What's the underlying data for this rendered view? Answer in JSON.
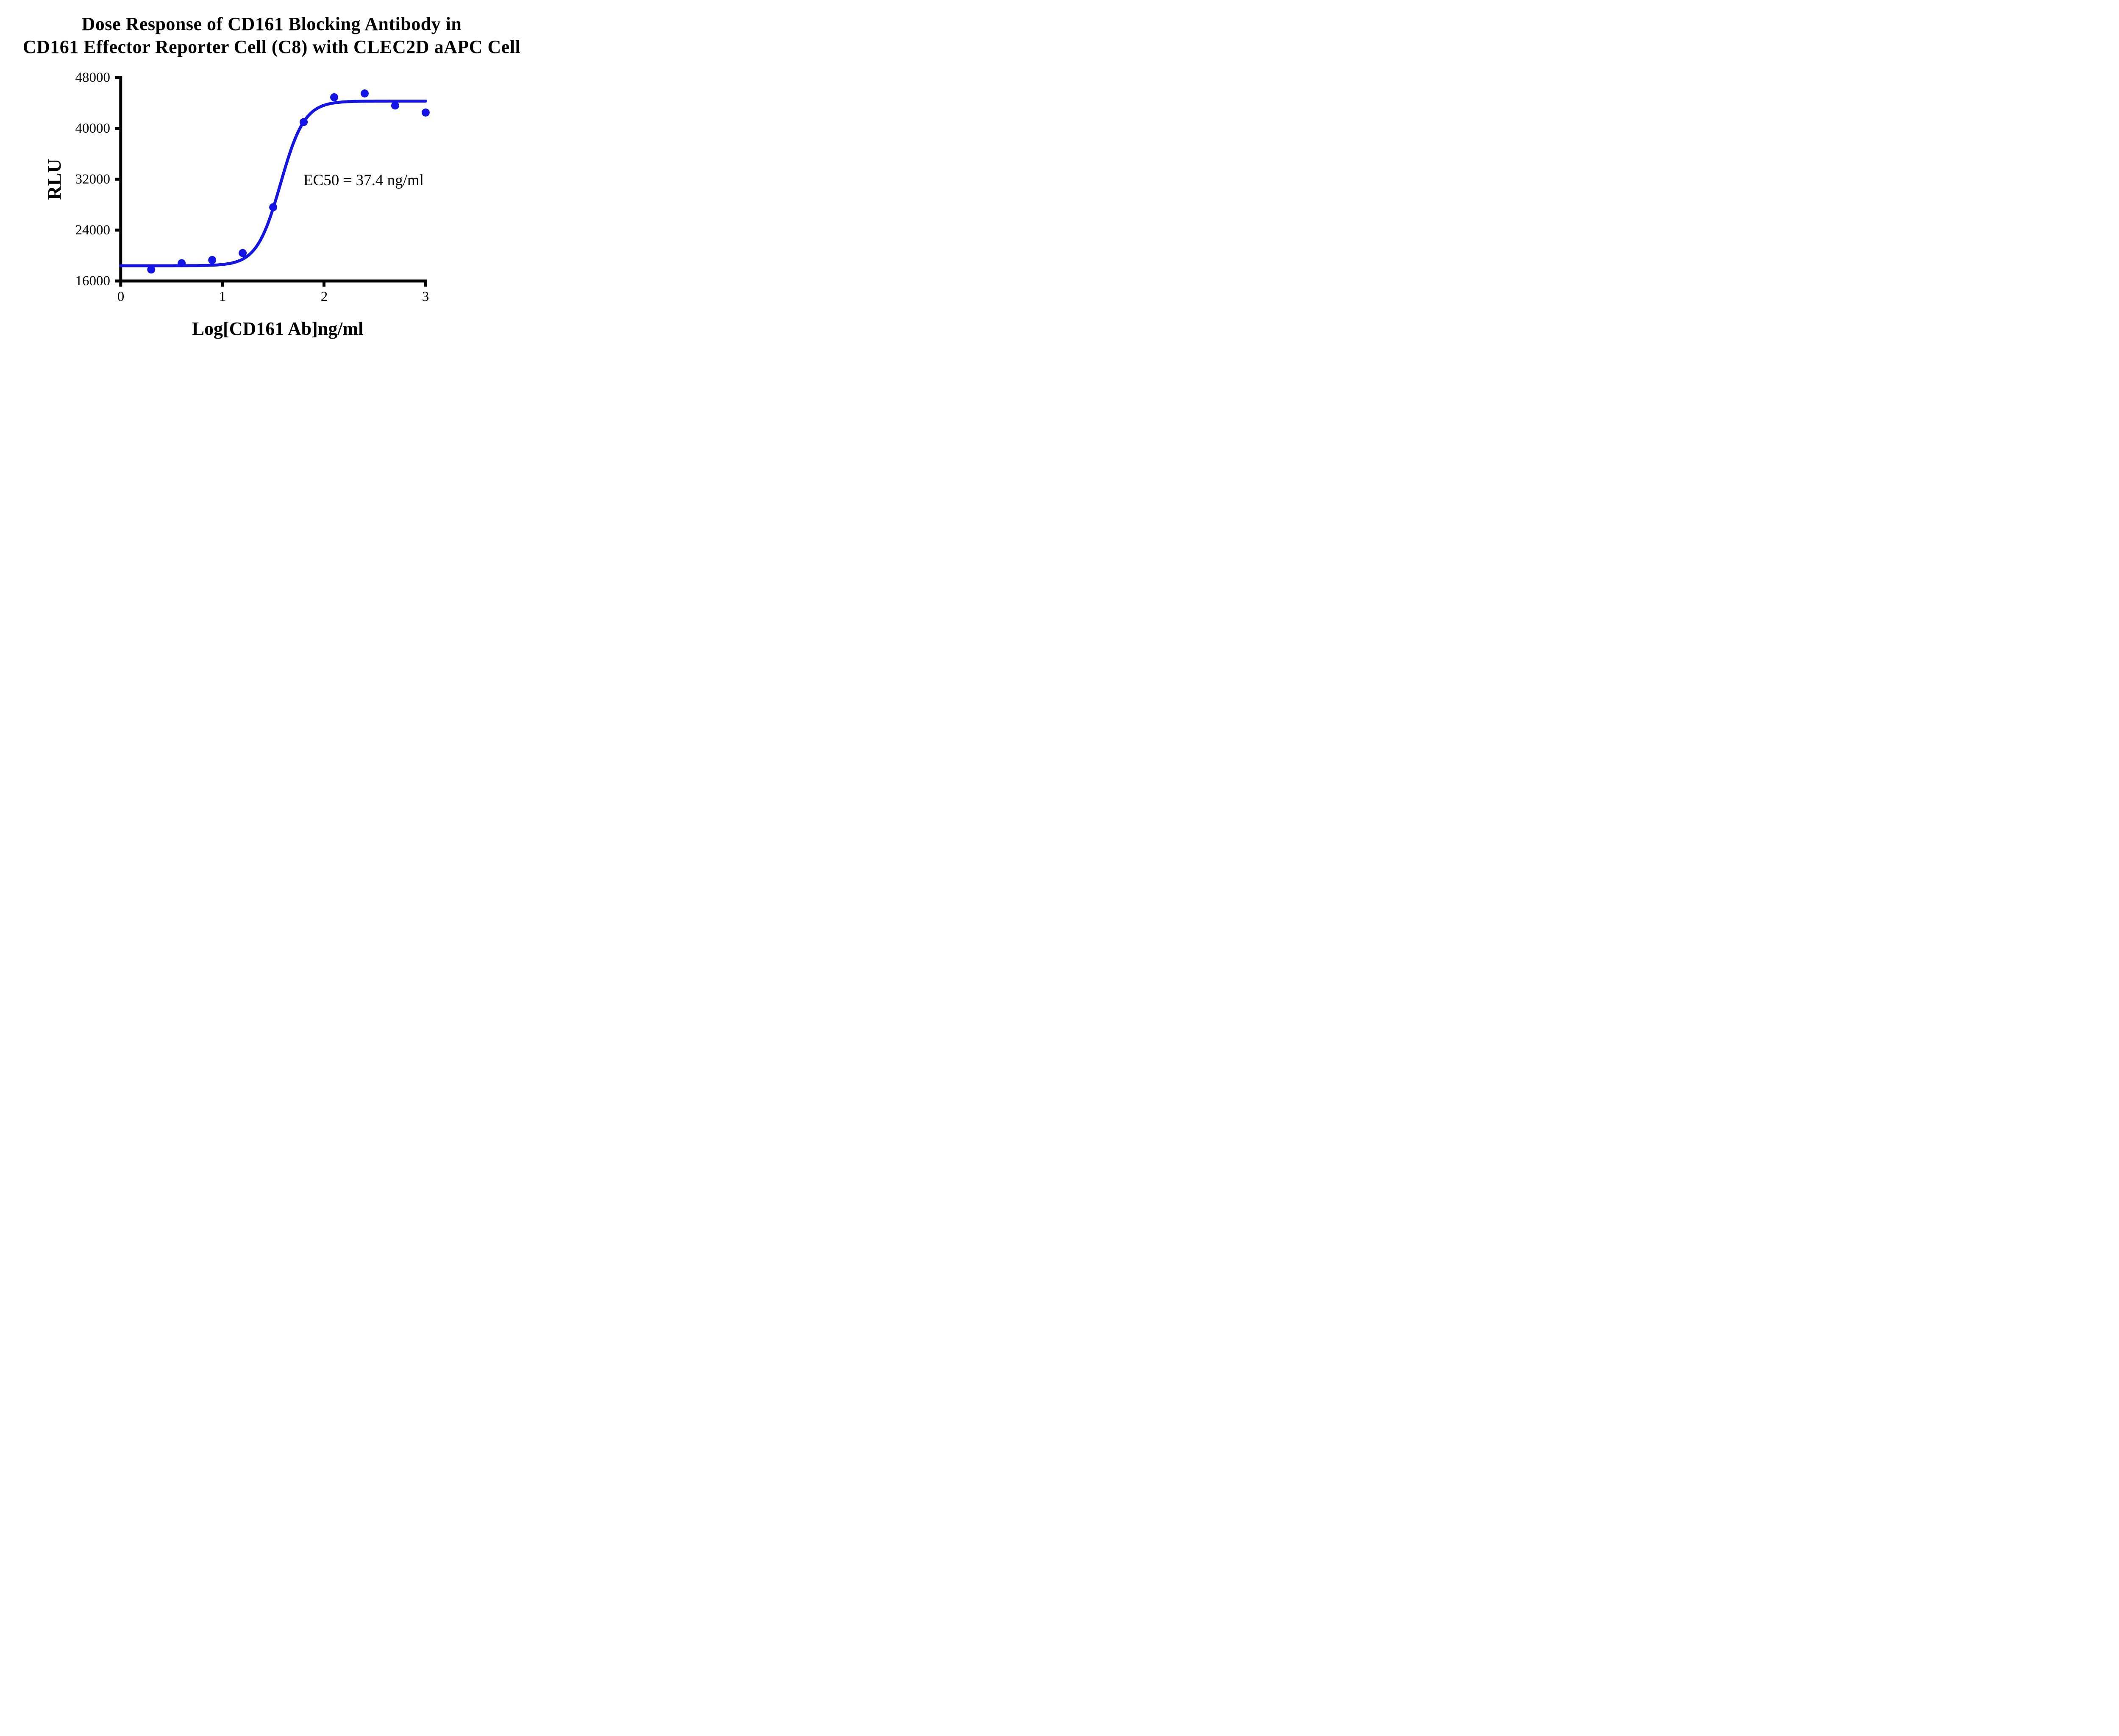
{
  "colors": {
    "curve": "#1414E6",
    "axis": "#000000",
    "text": "#000000",
    "background": "#FFFFFF"
  },
  "chart_data": {
    "type": "scatter",
    "title": "Dose Response of CD161 Blocking Antibody in CD161 Effector Reporter Cell (C8) with CLEC2D aAPC Cell",
    "title_lines": [
      "Dose Response of CD161 Blocking Antibody in",
      "CD161 Effector Reporter Cell (C8) with CLEC2D aAPC Cell"
    ],
    "xlabel": "Log[CD161 Ab]ng/ml",
    "ylabel": "RLU",
    "xlim": [
      0,
      3
    ],
    "ylim": [
      16000,
      48000
    ],
    "xticks": [
      0,
      1,
      2,
      3
    ],
    "yticks": [
      16000,
      24000,
      32000,
      40000,
      48000
    ],
    "xtick_labels": [
      "0",
      "1",
      "2",
      "3"
    ],
    "ytick_labels_top_to_bottom": [
      "48000",
      "40000",
      "32000",
      "24000",
      "16000"
    ],
    "grid": false,
    "legend": null,
    "points": [
      {
        "x": 0.3,
        "y": 17800
      },
      {
        "x": 0.6,
        "y": 18800
      },
      {
        "x": 0.9,
        "y": 19300
      },
      {
        "x": 1.2,
        "y": 20400
      },
      {
        "x": 1.5,
        "y": 27600
      },
      {
        "x": 1.8,
        "y": 41000
      },
      {
        "x": 2.1,
        "y": 44900
      },
      {
        "x": 2.4,
        "y": 45500
      },
      {
        "x": 2.7,
        "y": 43600
      },
      {
        "x": 3.0,
        "y": 42500
      }
    ],
    "fit_curve": {
      "model": "four_parameter_logistic",
      "bottom": 18400,
      "top": 44300,
      "log_ec50": 1.573,
      "hill_slope": 3.7
    },
    "annotation": {
      "text": "EC50 = 37.4 ng/ml"
    },
    "ec50_ng_ml": 37.4
  }
}
